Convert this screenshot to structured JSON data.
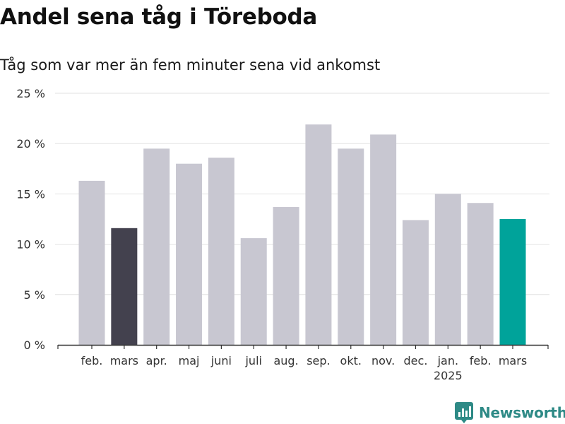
{
  "title": "Andel sena tåg i Töreboda",
  "subtitle": "Tåg som var mer än fem minuter sena vid ankomst",
  "brand": {
    "name": "Newsworthy",
    "icon": "newsworthy-logo-icon"
  },
  "colors": {
    "bar_default": "#c8c7d1",
    "bar_previous_year": "#43414e",
    "bar_current": "#00a39a",
    "grid": "#e2e2e2",
    "axis": "#333333",
    "brand": "#2e8a86"
  },
  "chart_data": {
    "type": "bar",
    "title": "Andel sena tåg i Töreboda",
    "subtitle": "Tåg som var mer än fem minuter sena vid ankomst",
    "categories": [
      "feb.",
      "mars",
      "apr.",
      "maj",
      "juni",
      "juli",
      "aug.",
      "sep.",
      "okt.",
      "nov.",
      "dec.",
      "jan.",
      "feb.",
      "mars"
    ],
    "year_labels": [
      "",
      "",
      "",
      "",
      "",
      "",
      "",
      "",
      "",
      "",
      "",
      "2025",
      "",
      ""
    ],
    "values": [
      16.3,
      11.6,
      19.5,
      18.0,
      18.6,
      10.6,
      13.7,
      21.9,
      19.5,
      20.9,
      12.4,
      15.0,
      14.1,
      12.5
    ],
    "highlight": [
      "default",
      "previous_year",
      "default",
      "default",
      "default",
      "default",
      "default",
      "default",
      "default",
      "default",
      "default",
      "default",
      "default",
      "current"
    ],
    "ylim": [
      0,
      25
    ],
    "yticks": [
      0,
      5,
      10,
      15,
      20,
      25
    ],
    "ytick_labels": [
      "0 %",
      "5 %",
      "10 %",
      "15 %",
      "20 %",
      "25 %"
    ],
    "xlabel": "",
    "ylabel": "",
    "grid": true,
    "legend": "none"
  }
}
